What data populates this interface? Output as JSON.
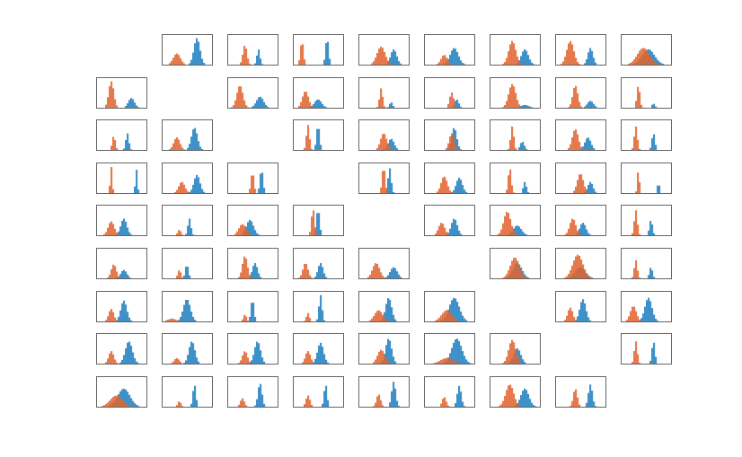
{
  "chart_data": {
    "type": "histogram-grid",
    "description_free": true,
    "rows": 9,
    "cols": 9,
    "diagonal_empty": true,
    "colors": {
      "series_a": "#E0642F",
      "series_b": "#1F7FC0",
      "frame": "#555555"
    },
    "cells": [
      [
        null,
        {
          "a": [
            0.3,
            0.07,
            0.4
          ],
          "b": [
            0.7,
            0.06,
            0.95
          ]
        },
        {
          "a": [
            0.35,
            0.04,
            0.7
          ],
          "b": [
            0.62,
            0.03,
            0.55
          ]
        },
        {
          "a": [
            0.18,
            0.03,
            0.85
          ],
          "b": [
            0.68,
            0.03,
            0.95
          ]
        },
        {
          "a": [
            0.45,
            0.08,
            0.65
          ],
          "b": [
            0.7,
            0.06,
            0.55
          ]
        },
        {
          "a": [
            0.4,
            0.06,
            0.35
          ],
          "b": [
            0.6,
            0.08,
            0.6
          ]
        },
        {
          "a": [
            0.45,
            0.07,
            0.85
          ],
          "b": [
            0.7,
            0.07,
            0.55
          ]
        },
        {
          "a": [
            0.3,
            0.07,
            0.85
          ],
          "b": [
            0.7,
            0.05,
            0.6
          ]
        },
        {
          "a": [
            0.45,
            0.12,
            0.6
          ],
          "b": [
            0.55,
            0.12,
            0.55
          ]
        }
      ],
      [
        {
          "a": [
            0.3,
            0.05,
            0.95
          ],
          "b": [
            0.7,
            0.06,
            0.35
          ]
        },
        null,
        {
          "a": [
            0.25,
            0.06,
            0.8
          ],
          "b": [
            0.65,
            0.07,
            0.4
          ]
        },
        {
          "a": [
            0.25,
            0.06,
            0.6
          ],
          "b": [
            0.5,
            0.07,
            0.3
          ]
        },
        {
          "a": [
            0.45,
            0.03,
            0.7
          ],
          "b": [
            0.65,
            0.03,
            0.2
          ]
        },
        {
          "a": [
            0.55,
            0.04,
            0.55
          ],
          "b": [
            0.65,
            0.04,
            0.3
          ]
        },
        {
          "a": [
            0.45,
            0.07,
            0.85
          ],
          "b": [
            0.7,
            0.08,
            0.1
          ]
        },
        {
          "a": [
            0.4,
            0.05,
            0.8
          ],
          "b": [
            0.7,
            0.06,
            0.25
          ]
        },
        {
          "a": [
            0.35,
            0.03,
            0.8
          ],
          "b": [
            0.65,
            0.03,
            0.15
          ]
        }
      ],
      [
        {
          "a": [
            0.35,
            0.03,
            0.5
          ],
          "b": [
            0.62,
            0.03,
            0.6
          ]
        },
        {
          "a": [
            0.3,
            0.06,
            0.45
          ],
          "b": [
            0.65,
            0.06,
            0.8
          ]
        },
        null,
        {
          "a": [
            0.3,
            0.03,
            0.9
          ],
          "b": [
            0.5,
            0.03,
            0.9
          ]
        },
        {
          "a": [
            0.5,
            0.06,
            0.6
          ],
          "b": [
            0.65,
            0.06,
            0.4
          ]
        },
        {
          "a": [
            0.55,
            0.05,
            0.6
          ],
          "b": [
            0.6,
            0.05,
            0.8
          ]
        },
        {
          "a": [
            0.45,
            0.03,
            0.85
          ],
          "b": [
            0.65,
            0.04,
            0.3
          ]
        },
        {
          "a": [
            0.4,
            0.06,
            0.75
          ],
          "b": [
            0.65,
            0.06,
            0.45
          ]
        },
        {
          "a": [
            0.3,
            0.03,
            0.85
          ],
          "b": [
            0.65,
            0.03,
            0.6
          ]
        }
      ],
      [
        {
          "a": [
            0.3,
            0.02,
            0.95
          ],
          "b": [
            0.8,
            0.02,
            0.85
          ]
        },
        {
          "a": [
            0.4,
            0.06,
            0.4
          ],
          "b": [
            0.7,
            0.06,
            0.65
          ]
        },
        {
          "a": [
            0.5,
            0.03,
            0.75
          ],
          "b": [
            0.68,
            0.03,
            0.85
          ]
        },
        null,
        {
          "a": [
            0.5,
            0.03,
            0.95
          ],
          "b": [
            0.62,
            0.03,
            0.9
          ]
        },
        {
          "a": [
            0.4,
            0.06,
            0.6
          ],
          "b": [
            0.7,
            0.06,
            0.55
          ]
        },
        {
          "a": [
            0.4,
            0.03,
            0.9
          ],
          "b": [
            0.7,
            0.03,
            0.4
          ]
        },
        {
          "a": [
            0.5,
            0.06,
            0.7
          ],
          "b": [
            0.7,
            0.05,
            0.4
          ]
        },
        {
          "a": [
            0.35,
            0.02,
            0.85
          ],
          "b": [
            0.75,
            0.02,
            0.4
          ]
        }
      ],
      [
        {
          "a": [
            0.3,
            0.06,
            0.5
          ],
          "b": [
            0.55,
            0.06,
            0.6
          ]
        },
        {
          "a": [
            0.35,
            0.03,
            0.2
          ],
          "b": [
            0.55,
            0.03,
            0.6
          ]
        },
        {
          "a": [
            0.3,
            0.07,
            0.4
          ],
          "b": [
            0.45,
            0.07,
            0.55
          ]
        },
        {
          "a": [
            0.4,
            0.03,
            0.95
          ],
          "b": [
            0.5,
            0.03,
            0.95
          ]
        },
        null,
        {
          "a": [
            0.35,
            0.06,
            0.45
          ],
          "b": [
            0.6,
            0.06,
            0.6
          ]
        },
        {
          "a": [
            0.35,
            0.07,
            0.85
          ],
          "b": [
            0.55,
            0.08,
            0.35
          ]
        },
        {
          "a": [
            0.35,
            0.06,
            0.6
          ],
          "b": [
            0.55,
            0.06,
            0.45
          ]
        },
        {
          "a": [
            0.3,
            0.03,
            0.9
          ],
          "b": [
            0.6,
            0.03,
            0.55
          ]
        }
      ],
      [
        {
          "a": [
            0.35,
            0.05,
            0.5
          ],
          "b": [
            0.55,
            0.06,
            0.3
          ]
        },
        {
          "a": [
            0.35,
            0.03,
            0.3
          ],
          "b": [
            0.5,
            0.03,
            0.5
          ]
        },
        {
          "a": [
            0.35,
            0.05,
            0.8
          ],
          "b": [
            0.55,
            0.05,
            0.55
          ]
        },
        {
          "a": [
            0.25,
            0.05,
            0.55
          ],
          "b": [
            0.55,
            0.05,
            0.55
          ]
        },
        {
          "a": [
            0.35,
            0.07,
            0.55
          ],
          "b": [
            0.7,
            0.07,
            0.4
          ]
        },
        null,
        {
          "a": [
            0.5,
            0.09,
            0.75
          ],
          "b": [
            0.55,
            0.09,
            0.55
          ]
        },
        {
          "a": [
            0.45,
            0.1,
            0.85
          ],
          "b": [
            0.5,
            0.1,
            0.4
          ]
        },
        {
          "a": [
            0.3,
            0.03,
            0.65
          ],
          "b": [
            0.6,
            0.03,
            0.4
          ]
        }
      ],
      [
        {
          "a": [
            0.3,
            0.05,
            0.45
          ],
          "b": [
            0.55,
            0.06,
            0.75
          ]
        },
        {
          "a": [
            0.2,
            0.08,
            0.1
          ],
          "b": [
            0.5,
            0.07,
            0.8
          ]
        },
        {
          "a": [
            0.35,
            0.03,
            0.25
          ],
          "b": [
            0.5,
            0.03,
            0.8
          ]
        },
        {
          "a": [
            0.3,
            0.03,
            0.3
          ],
          "b": [
            0.55,
            0.03,
            0.95
          ]
        },
        {
          "a": [
            0.4,
            0.08,
            0.4
          ],
          "b": [
            0.6,
            0.06,
            0.85
          ]
        },
        {
          "a": [
            0.45,
            0.1,
            0.4
          ],
          "b": [
            0.6,
            0.1,
            0.85
          ]
        },
        null,
        {
          "a": [
            0.3,
            0.05,
            0.5
          ],
          "b": [
            0.55,
            0.06,
            0.8
          ]
        },
        {
          "a": [
            0.25,
            0.06,
            0.55
          ],
          "b": [
            0.55,
            0.07,
            0.85
          ]
        }
      ],
      [
        {
          "a": [
            0.3,
            0.05,
            0.45
          ],
          "b": [
            0.65,
            0.07,
            0.8
          ]
        },
        {
          "a": [
            0.3,
            0.05,
            0.2
          ],
          "b": [
            0.6,
            0.06,
            0.8
          ]
        },
        {
          "a": [
            0.35,
            0.05,
            0.45
          ],
          "b": [
            0.6,
            0.06,
            0.8
          ]
        },
        {
          "a": [
            0.3,
            0.05,
            0.45
          ],
          "b": [
            0.55,
            0.06,
            0.75
          ]
        },
        {
          "a": [
            0.45,
            0.07,
            0.5
          ],
          "b": [
            0.6,
            0.06,
            0.9
          ]
        },
        {
          "a": [
            0.45,
            0.12,
            0.2
          ],
          "b": [
            0.65,
            0.1,
            0.9
          ]
        },
        {
          "a": [
            0.45,
            0.07,
            0.85
          ],
          "b": [
            0.55,
            0.07,
            0.55
          ]
        },
        null,
        {
          "a": [
            0.3,
            0.03,
            0.8
          ],
          "b": [
            0.65,
            0.03,
            0.8
          ]
        }
      ],
      [
        {
          "a": [
            0.4,
            0.12,
            0.4
          ],
          "b": [
            0.55,
            0.12,
            0.65
          ]
        },
        {
          "a": [
            0.35,
            0.03,
            0.2
          ],
          "b": [
            0.65,
            0.03,
            0.8
          ]
        },
        {
          "a": [
            0.3,
            0.04,
            0.3
          ],
          "b": [
            0.65,
            0.04,
            0.85
          ]
        },
        {
          "a": [
            0.3,
            0.04,
            0.4
          ],
          "b": [
            0.65,
            0.03,
            0.8
          ]
        },
        {
          "a": [
            0.4,
            0.04,
            0.45
          ],
          "b": [
            0.7,
            0.04,
            0.9
          ]
        },
        {
          "a": [
            0.4,
            0.04,
            0.35
          ],
          "b": [
            0.7,
            0.04,
            0.75
          ]
        },
        {
          "a": [
            0.4,
            0.08,
            0.8
          ],
          "b": [
            0.7,
            0.08,
            0.65
          ]
        },
        {
          "a": [
            0.4,
            0.04,
            0.65
          ],
          "b": [
            0.7,
            0.04,
            0.8
          ]
        },
        null
      ]
    ]
  }
}
